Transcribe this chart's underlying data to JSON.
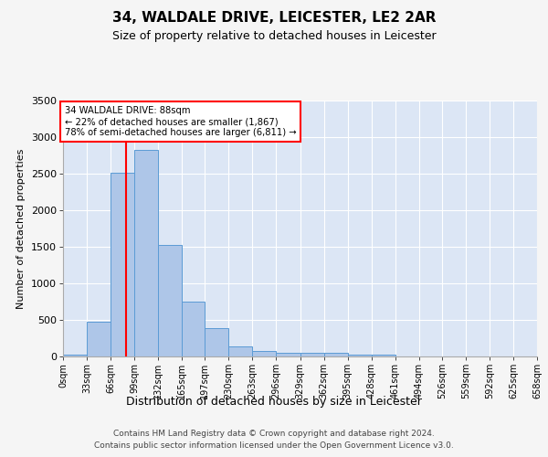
{
  "title": "34, WALDALE DRIVE, LEICESTER, LE2 2AR",
  "subtitle": "Size of property relative to detached houses in Leicester",
  "xlabel": "Distribution of detached houses by size in Leicester",
  "ylabel": "Number of detached properties",
  "bar_color": "#aec6e8",
  "bar_edge_color": "#5b9bd5",
  "bg_color": "#dce6f5",
  "grid_color": "#ffffff",
  "fig_bg_color": "#f5f5f5",
  "annotation_box_color": "#cc0000",
  "property_line_x": 88,
  "annotation_line1": "34 WALDALE DRIVE: 88sqm",
  "annotation_line2": "← 22% of detached houses are smaller (1,867)",
  "annotation_line3": "78% of semi-detached houses are larger (6,811) →",
  "footer_line1": "Contains HM Land Registry data © Crown copyright and database right 2024.",
  "footer_line2": "Contains public sector information licensed under the Open Government Licence v3.0.",
  "bin_edges": [
    0,
    33,
    66,
    99,
    132,
    165,
    197,
    230,
    263,
    296,
    329,
    362,
    395,
    428,
    461,
    494,
    526,
    559,
    592,
    625,
    658
  ],
  "bin_labels": [
    "0sqm",
    "33sqm",
    "66sqm",
    "99sqm",
    "132sqm",
    "165sqm",
    "197sqm",
    "230sqm",
    "263sqm",
    "296sqm",
    "329sqm",
    "362sqm",
    "395sqm",
    "428sqm",
    "461sqm",
    "494sqm",
    "526sqm",
    "559sqm",
    "592sqm",
    "625sqm",
    "658sqm"
  ],
  "bar_heights": [
    25,
    480,
    2510,
    2820,
    1520,
    750,
    385,
    140,
    75,
    55,
    55,
    50,
    30,
    20,
    0,
    0,
    0,
    0,
    0,
    0
  ],
  "ylim": [
    0,
    3500
  ],
  "yticks": [
    0,
    500,
    1000,
    1500,
    2000,
    2500,
    3000,
    3500
  ]
}
